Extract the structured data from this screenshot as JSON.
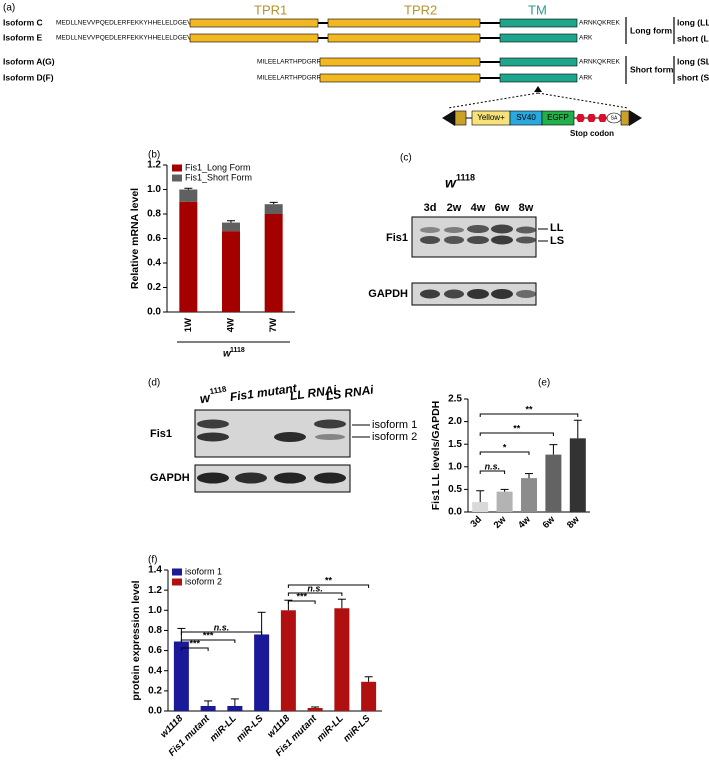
{
  "panel_a": {
    "label": "(a)",
    "domains": [
      "TPR1",
      "TPR2",
      "TM"
    ],
    "isoforms": [
      {
        "name": "Isoform C",
        "n_term": "MEDLLNEVVPQEDLERFEKKYHHELELDGEVTTD",
        "c_term": "ARNKQKREK",
        "form": "long (LL)"
      },
      {
        "name": "Isoform E",
        "n_term": "MEDLLNEVVPQEDLERFEKKYHHELELDGEVTTD",
        "c_term": "ARK",
        "form": "short (LS)"
      },
      {
        "name": "Isoform A(G)",
        "n_term": "MILEELARTHPDGRR",
        "c_term": "ARNKQKREK",
        "form": "long (SL)"
      },
      {
        "name": "Isoform D(F)",
        "n_term": "MILEELARTHPDGRR",
        "c_term": "ARK",
        "form": "short (SS)"
      }
    ],
    "groups": [
      "Long form",
      "Short form"
    ],
    "construct": [
      "Yellow+",
      "SV40",
      "EGFP",
      "SA"
    ],
    "stop": "Stop codon"
  },
  "panel_c": {
    "label": "(c)",
    "strain": "w",
    "strain_sup": "1118",
    "lanes": [
      "3d",
      "2w",
      "4w",
      "6w",
      "8w"
    ],
    "rows": [
      "Fis1",
      "GAPDH"
    ],
    "bands": [
      "LL",
      "LS"
    ]
  },
  "panel_d": {
    "label": "(d)",
    "strain": "w",
    "strain_sup": "1118",
    "lanes": [
      "Fis1 mutant",
      "LL RNAi",
      "LS RNAi"
    ],
    "rows": [
      "Fis1",
      "GAPDH"
    ],
    "bands": [
      "isoform 1",
      "isoform 2"
    ]
  },
  "chart_data": [
    {
      "type": "stacked_bar",
      "label": "(b)",
      "ylabel": "Relative mRNA level",
      "xlabel": "w",
      "xlabel_sup": "1118",
      "categories": [
        "1W",
        "4W",
        "7W"
      ],
      "series": [
        {
          "name": "Fis1_Long Form",
          "color": "#a50000",
          "values": [
            0.9,
            0.66,
            0.8
          ],
          "errors": [
            0.01,
            0.01,
            0.02
          ]
        },
        {
          "name": "Fis1_Short Form",
          "color": "#606060",
          "values": [
            0.1,
            0.07,
            0.08
          ],
          "errors": [
            0.01,
            0.015,
            0.015
          ]
        }
      ],
      "ylim": [
        0,
        1.2
      ],
      "yticks": [
        {
          "value": 0,
          "label": "0.0"
        },
        0.2,
        0.4,
        0.6,
        0.8,
        {
          "value": 1,
          "label": "1.0"
        },
        1.2
      ],
      "legend": "upper left"
    },
    {
      "type": "bar",
      "label": "(e)",
      "ylabel": "Fis1 LL levels/GAPDH",
      "categories": [
        "3d",
        "2w",
        "4w",
        "6w",
        "8w"
      ],
      "values": [
        0.22,
        0.45,
        0.75,
        1.27,
        1.63
      ],
      "errors": [
        0.25,
        0.05,
        0.1,
        0.22,
        0.4
      ],
      "colors": [
        "#d9d9d9",
        "#b3b3b3",
        "#8c8c8c",
        "#636363",
        "#333333"
      ],
      "ylim": [
        0,
        2.5
      ],
      "yticks": [
        {
          "value": 0,
          "label": "0.0"
        },
        0.5,
        {
          "value": 1,
          "label": "1.0"
        },
        1.5,
        {
          "value": 2,
          "label": "2.0"
        },
        2.5
      ],
      "brackets": [
        {
          "from": "3d",
          "to": "2w",
          "text": "n.s."
        },
        {
          "from": "3d",
          "to": "4w",
          "text": "*"
        },
        {
          "from": "3d",
          "to": "6w",
          "text": "**"
        },
        {
          "from": "3d",
          "to": "8w",
          "text": "**"
        }
      ]
    },
    {
      "type": "grouped_bar",
      "label": "(f)",
      "ylabel": "protein expression level",
      "categories": [
        "w1118",
        "Fis1 mutant",
        "miR-LL",
        "miR-LS"
      ],
      "series": [
        {
          "name": "isoform 1",
          "color": "#1a1a99",
          "values": [
            0.69,
            0.05,
            0.05,
            0.76
          ],
          "errors": [
            0.13,
            0.05,
            0.07,
            0.22
          ]
        },
        {
          "name": "isoform 2",
          "color": "#b01010",
          "values": [
            1.0,
            0.03,
            1.02,
            0.29
          ],
          "errors": [
            0.1,
            0.01,
            0.09,
            0.05
          ]
        }
      ],
      "ylim": [
        0,
        1.4
      ],
      "yticks": [
        {
          "value": 0,
          "label": "0.0"
        },
        0.2,
        0.4,
        0.6,
        0.8,
        {
          "value": 1,
          "label": "1.0"
        },
        1.2,
        1.4
      ],
      "legend": "upper left",
      "brackets": [
        {
          "series": "isoform 1",
          "from": "w1118",
          "to": "Fis1 mutant",
          "text": "***"
        },
        {
          "series": "isoform 1",
          "from": "w1118",
          "to": "miR-LL",
          "text": "***"
        },
        {
          "series": "isoform 1",
          "from": "w1118",
          "to": "miR-LS",
          "text": "n.s."
        },
        {
          "series": "isoform 2",
          "from": "w1118",
          "to": "Fis1 mutant",
          "text": "***"
        },
        {
          "series": "isoform 2",
          "from": "w1118",
          "to": "miR-LL",
          "text": "n.s."
        },
        {
          "series": "isoform 2",
          "from": "w1118",
          "to": "miR-LS",
          "text": "**"
        }
      ]
    }
  ]
}
